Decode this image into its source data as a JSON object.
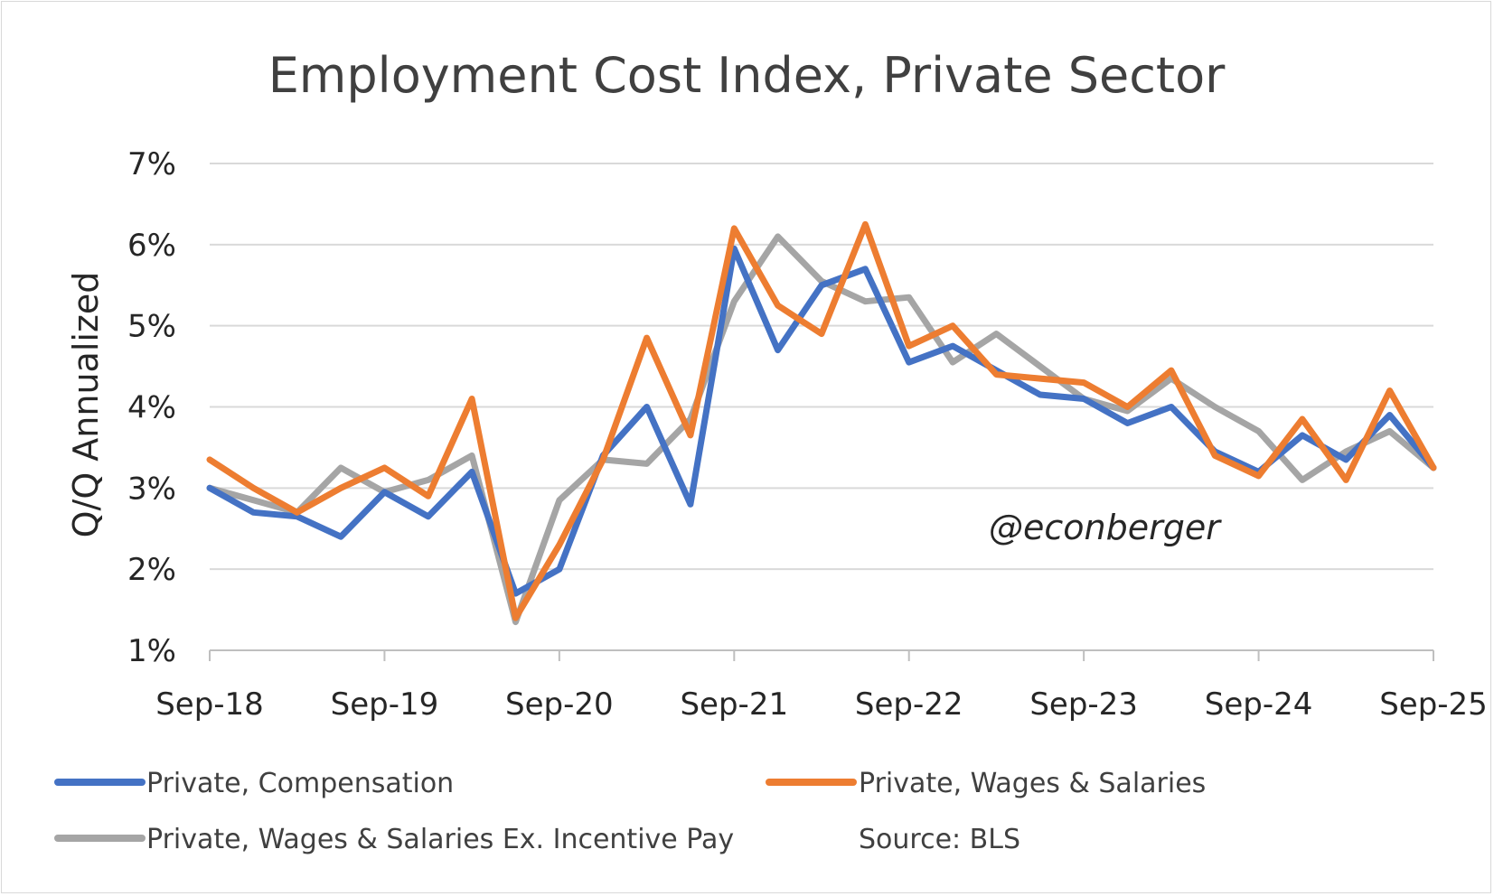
{
  "chart_data": {
    "type": "line",
    "title": "Employment Cost Index, Private Sector",
    "ylabel": "Q/Q Annualized",
    "xlabel": "",
    "ylim": [
      1,
      7
    ],
    "y_ticks": [
      1,
      2,
      3,
      4,
      5,
      6,
      7
    ],
    "y_tick_labels": [
      "1%",
      "2%",
      "3%",
      "4%",
      "5%",
      "6%",
      "7%"
    ],
    "x_count": 29,
    "x_tick_indices": [
      0,
      4,
      8,
      12,
      16,
      20,
      24,
      28
    ],
    "x_tick_labels": [
      "Sep-18",
      "Sep-19",
      "Sep-20",
      "Sep-21",
      "Sep-22",
      "Sep-23",
      "Sep-24",
      "Sep-25"
    ],
    "grid": true,
    "legend_position": "bottom",
    "series": [
      {
        "name": "Private, Compensation",
        "color": "#4472C4",
        "values": [
          3.0,
          2.7,
          2.65,
          2.4,
          2.95,
          2.65,
          3.2,
          1.7,
          2.0,
          3.4,
          4.0,
          2.8,
          5.95,
          4.7,
          5.5,
          5.7,
          4.55,
          4.75,
          4.45,
          4.15,
          4.1,
          3.8,
          4.0,
          3.45,
          3.2,
          3.65,
          3.35,
          3.9,
          3.25
        ]
      },
      {
        "name": "Private, Wages & Salaries",
        "color": "#ED7D31",
        "values": [
          3.35,
          3.0,
          2.7,
          3.0,
          3.25,
          2.9,
          4.1,
          1.4,
          2.3,
          3.35,
          4.85,
          3.65,
          6.2,
          5.25,
          4.9,
          6.25,
          4.75,
          5.0,
          4.4,
          4.35,
          4.3,
          4.0,
          4.45,
          3.4,
          3.15,
          3.85,
          3.1,
          4.2,
          3.25
        ]
      },
      {
        "name": "Private, Wages & Salaries Ex. Incentive Pay",
        "color": "#A5A5A5",
        "values": [
          3.0,
          2.85,
          2.7,
          3.25,
          2.95,
          3.1,
          3.4,
          1.35,
          2.85,
          3.35,
          3.3,
          3.85,
          5.3,
          6.1,
          5.55,
          5.3,
          5.35,
          4.55,
          4.9,
          4.5,
          4.1,
          3.95,
          4.35,
          4.0,
          3.7,
          3.1,
          3.45,
          3.7,
          3.25
        ]
      }
    ],
    "annotations": [
      "@econberger"
    ],
    "source_note": "Source: BLS"
  }
}
